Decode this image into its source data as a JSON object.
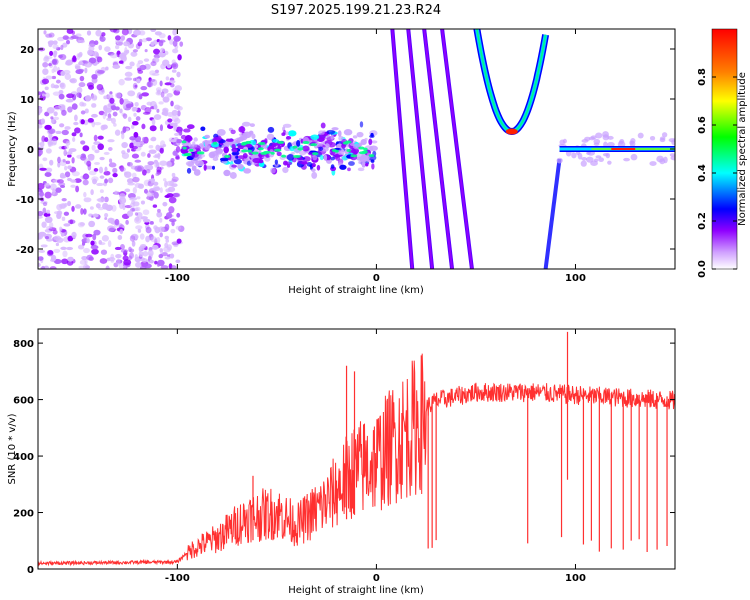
{
  "title": "S197.2025.199.21.23.R24",
  "chart_data": [
    {
      "type": "heatmap",
      "xlabel": "Height of straight line (km)",
      "ylabel": "Frequency (Hz)",
      "xlim": [
        -170,
        150
      ],
      "ylim": [
        -24,
        24
      ],
      "xticks": [
        -100,
        0,
        100
      ],
      "yticks": [
        -20,
        -10,
        0,
        10,
        20
      ],
      "colorbar": {
        "label": "Normalized spectral amplitude",
        "range": [
          0.0,
          1.0
        ],
        "ticks": [
          0.0,
          0.2,
          0.4,
          0.6,
          0.8
        ],
        "tick_labels": [
          "0.0",
          "0.2",
          "0.4",
          "0.6",
          "0.8"
        ],
        "colormap": [
          "#ffffff",
          "#8f00ff",
          "#0000ff",
          "#00ffff",
          "#00ff00",
          "#ffff00",
          "#ff8000",
          "#ff0000"
        ]
      },
      "features": [
        {
          "kind": "diffuse-noise",
          "x_range": [
            -170,
            -98
          ]
        },
        {
          "kind": "clustered-near-zero",
          "x_range": [
            -98,
            0
          ],
          "y_center": 0
        },
        {
          "kind": "steep-line",
          "x_at_top": 8,
          "x_at_bottom": 18
        },
        {
          "kind": "steep-line",
          "x_at_top": 16,
          "x_at_bottom": 28
        },
        {
          "kind": "steep-line",
          "x_at_top": 24,
          "x_at_bottom": 38
        },
        {
          "kind": "steep-line",
          "x_at_top": 33,
          "x_at_bottom": 48
        },
        {
          "kind": "parabola",
          "vertex_x": 68,
          "vertex_y": 3.5,
          "x_at_top_left": 50,
          "x_at_top_right": 85
        },
        {
          "kind": "rising-line",
          "from": [
            85,
            -24
          ],
          "to": [
            92,
            -2
          ]
        },
        {
          "kind": "flat-line",
          "x_range": [
            92,
            150
          ],
          "y": 0,
          "peak_amplitude": 1.0
        }
      ]
    },
    {
      "type": "line",
      "xlabel": "Height of straight line (km)",
      "ylabel": "SNR (10 * v/v)",
      "xlim": [
        -170,
        150
      ],
      "ylim": [
        0,
        850
      ],
      "xticks": [
        -100,
        0,
        100
      ],
      "yticks": [
        0,
        200,
        400,
        600,
        800
      ],
      "series": [
        {
          "color": "#ff3030",
          "envelope": [
            {
              "x": -170,
              "y": 20
            },
            {
              "x": -100,
              "y": 25
            },
            {
              "x": -92,
              "y": 80
            },
            {
              "x": -80,
              "y": 120
            },
            {
              "x": -65,
              "y": 200
            },
            {
              "x": -50,
              "y": 220
            },
            {
              "x": -40,
              "y": 170
            },
            {
              "x": -25,
              "y": 260
            },
            {
              "x": -12,
              "y": 380
            },
            {
              "x": 0,
              "y": 420
            },
            {
              "x": 10,
              "y": 500
            },
            {
              "x": 20,
              "y": 560
            },
            {
              "x": 30,
              "y": 610
            },
            {
              "x": 50,
              "y": 640
            },
            {
              "x": 80,
              "y": 640
            },
            {
              "x": 100,
              "y": 630
            },
            {
              "x": 150,
              "y": 610
            }
          ],
          "spikes": [
            {
              "x": -62,
              "y": 330
            },
            {
              "x": -15,
              "y": 720
            },
            {
              "x": -11,
              "y": 700
            },
            {
              "x": 96,
              "y": 840
            }
          ],
          "dropouts_x": [
            26,
            28,
            30,
            76,
            93,
            104,
            108,
            112,
            118,
            124,
            128,
            132,
            136,
            141,
            146
          ]
        }
      ]
    }
  ]
}
